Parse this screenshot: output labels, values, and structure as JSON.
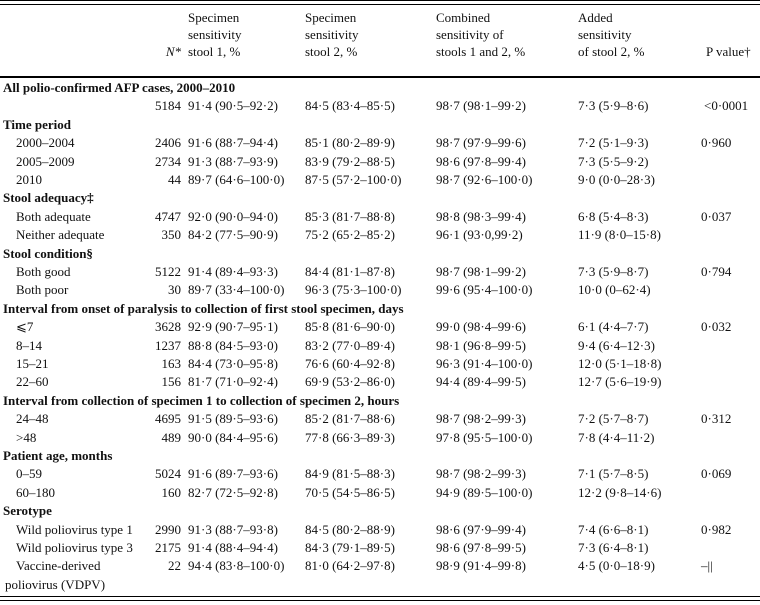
{
  "headers": {
    "n": "N*",
    "col1": "Specimen\nsensitivity\nstool 1, %",
    "col2": "Specimen\nsensitivity\nstool 2, %",
    "col3": "Combined\nsensitivity of\nstools 1 and 2, %",
    "col4": "Added\nsensitivity\nof stool 2, %",
    "p": "P value†"
  },
  "sections": [
    {
      "title": "All polio-confirmed AFP cases, 2000–2010",
      "rows": [
        {
          "label": "",
          "n": "5184",
          "s1": "91·4 (90·5–92·2)",
          "s2": "84·5 (83·4–85·5)",
          "comb": "98·7 (98·1–99·2)",
          "added": "7·3 (5·9–8·6)",
          "p": "<0·0001"
        }
      ]
    },
    {
      "title": "Time period",
      "rows": [
        {
          "label": "2000–2004",
          "n": "2406",
          "s1": "91·6 (88·7–94·4)",
          "s2": "85·1 (80·2–89·9)",
          "comb": "98·7 (97·9–99·6)",
          "added": "7·2 (5·1–9·3)",
          "p": "0·960"
        },
        {
          "label": "2005–2009",
          "n": "2734",
          "s1": "91·3 (88·7–93·9)",
          "s2": "83·9 (79·2–88·5)",
          "comb": "98·6 (97·8–99·4)",
          "added": "7·3 (5·5–9·2)",
          "p": ""
        },
        {
          "label": "2010",
          "n": "44",
          "s1": "89·7 (64·6–100·0)",
          "s2": "87·5 (57·2–100·0)",
          "comb": "98·7 (92·6–100·0)",
          "added": "9·0 (0·0–28·3)",
          "p": ""
        }
      ]
    },
    {
      "title": "Stool adequacy‡",
      "rows": [
        {
          "label": "Both adequate",
          "n": "4747",
          "s1": "92·0 (90·0–94·0)",
          "s2": "85·3 (81·7–88·8)",
          "comb": "98·8 (98·3–99·4)",
          "added": "6·8 (5·4–8·3)",
          "p": "0·037"
        },
        {
          "label": "Neither adequate",
          "n": "350",
          "s1": "84·2 (77·5–90·9)",
          "s2": "75·2 (65·2–85·2)",
          "comb": "96·1 (93·0,99·2)",
          "added": "11·9 (8·0–15·8)",
          "p": ""
        }
      ]
    },
    {
      "title": "Stool condition§",
      "rows": [
        {
          "label": "Both good",
          "n": "5122",
          "s1": "91·4 (89·4–93·3)",
          "s2": "84·4 (81·1–87·8)",
          "comb": "98·7 (98·1–99·2)",
          "added": "7·3 (5·9–8·7)",
          "p": "0·794"
        },
        {
          "label": "Both poor",
          "n": "30",
          "s1": "89·7 (33·4–100·0)",
          "s2": "96·3 (75·3–100·0)",
          "comb": "99·6 (95·4–100·0)",
          "added": "10·0 (0–62·4)",
          "p": ""
        }
      ]
    },
    {
      "title": "Interval from onset of paralysis to collection of first stool specimen, days",
      "rows": [
        {
          "label": "⩽7",
          "n": "3628",
          "s1": "92·9 (90·7–95·1)",
          "s2": "85·8 (81·6–90·0)",
          "comb": "99·0 (98·4–99·6)",
          "added": "6·1 (4·4–7·7)",
          "p": "0·032"
        },
        {
          "label": "8–14",
          "n": "1237",
          "s1": "88·8 (84·5–93·0)",
          "s2": "83·2 (77·0–89·4)",
          "comb": "98·1 (96·8–99·5)",
          "added": "9·4 (6·4–12·3)",
          "p": ""
        },
        {
          "label": "15–21",
          "n": "163",
          "s1": "84·4 (73·0–95·8)",
          "s2": "76·6 (60·4–92·8)",
          "comb": "96·3 (91·4–100·0)",
          "added": "12·0 (5·1–18·8)",
          "p": ""
        },
        {
          "label": "22–60",
          "n": "156",
          "s1": "81·7 (71·0–92·4)",
          "s2": "69·9 (53·2–86·0)",
          "comb": "94·4 (89·4–99·5)",
          "added": "12·7 (5·6–19·9)",
          "p": ""
        }
      ]
    },
    {
      "title": "Interval from collection of specimen 1 to collection of specimen 2, hours",
      "rows": [
        {
          "label": "24–48",
          "n": "4695",
          "s1": "91·5 (89·5–93·6)",
          "s2": "85·2 (81·7–88·6)",
          "comb": "98·7 (98·2–99·3)",
          "added": "7·2 (5·7–8·7)",
          "p": "0·312"
        },
        {
          "label": ">48",
          "n": "489",
          "s1": "90·0 (84·4–95·6)",
          "s2": "77·8 (66·3–89·3)",
          "comb": "97·8 (95·5–100·0)",
          "added": "7·8 (4·4–11·2)",
          "p": ""
        }
      ]
    },
    {
      "title": "Patient age, months",
      "rows": [
        {
          "label": "0–59",
          "n": "5024",
          "s1": "91·6 (89·7–93·6)",
          "s2": "84·9 (81·5–88·3)",
          "comb": "98·7 (98·2–99·3)",
          "added": "7·1 (5·7–8·5)",
          "p": "0·069"
        },
        {
          "label": "60–180",
          "n": "160",
          "s1": "82·7 (72·5–92·8)",
          "s2": "70·5 (54·5–86·5)",
          "comb": "94·9 (89·5–100·0)",
          "added": "12·2 (9·8–14·6)",
          "p": ""
        }
      ]
    },
    {
      "title": "Serotype",
      "rows": [
        {
          "label": "Wild poliovirus type 1",
          "n": "2990",
          "s1": "91·3 (88·7–93·8)",
          "s2": "84·5 (80·2–88·9)",
          "comb": "98·6 (97·9–99·4)",
          "added": "7·4 (6·6–8·1)",
          "p": "0·982"
        },
        {
          "label": "Wild poliovirus type 3",
          "n": "2175",
          "s1": "91·4 (88·4–94·4)",
          "s2": "84·3 (79·1–89·5)",
          "comb": "98·6 (97·8–99·5)",
          "added": "7·3 (6·4–8·1)",
          "p": ""
        },
        {
          "label": "Vaccine-derived",
          "label2": "poliovirus (VDPV)",
          "n": "22",
          "s1": "94·4 (83·8–100·0)",
          "s2": "81·0 (64·2–97·8)",
          "comb": "98·9 (91·4–99·8)",
          "added": "4·5 (0·0–18·9)",
          "p": "–||"
        }
      ]
    }
  ]
}
